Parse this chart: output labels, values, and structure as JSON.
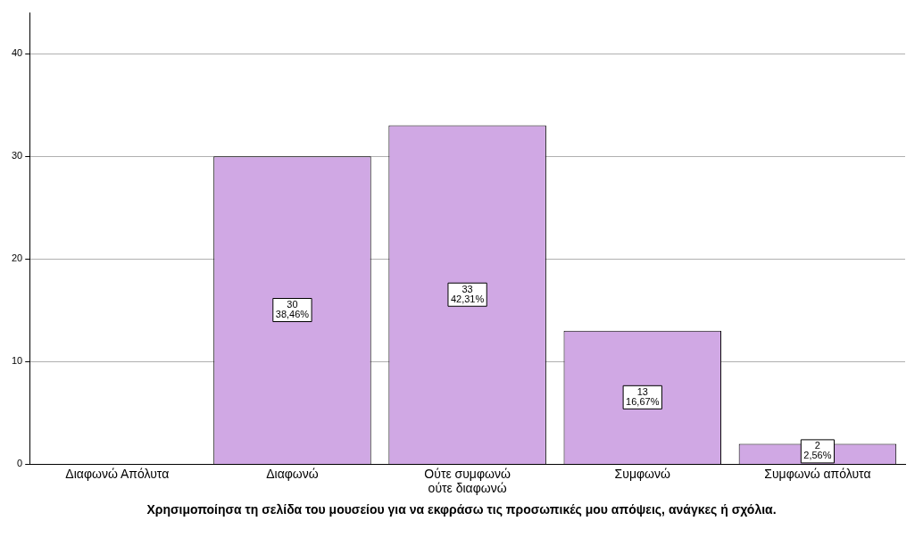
{
  "chart_data": {
    "type": "bar",
    "xlabel": "Χρησιμοποίησα τη σελίδα του μουσείου για να εκφράσω τις προσωπικές μου απόψεις, ανάγκες ή σχόλια.",
    "categories": [
      "Διαφωνώ Απόλυτα",
      "Διαφωνώ",
      "Ούτε συμφωνώ ούτε διαφωνώ",
      "Συμφωνώ",
      "Συμφωνώ απόλυτα"
    ],
    "values": [
      null,
      30,
      33,
      13,
      2
    ],
    "value_labels": [
      null,
      "30\n38,46%",
      "33\n42,31%",
      "13\n16,67%",
      "2\n2,56%"
    ],
    "color": "#d0a8e4",
    "ylim": [
      0,
      44
    ],
    "yticks": [
      0,
      10,
      20,
      30,
      40
    ],
    "grid": "y",
    "legend": false
  }
}
